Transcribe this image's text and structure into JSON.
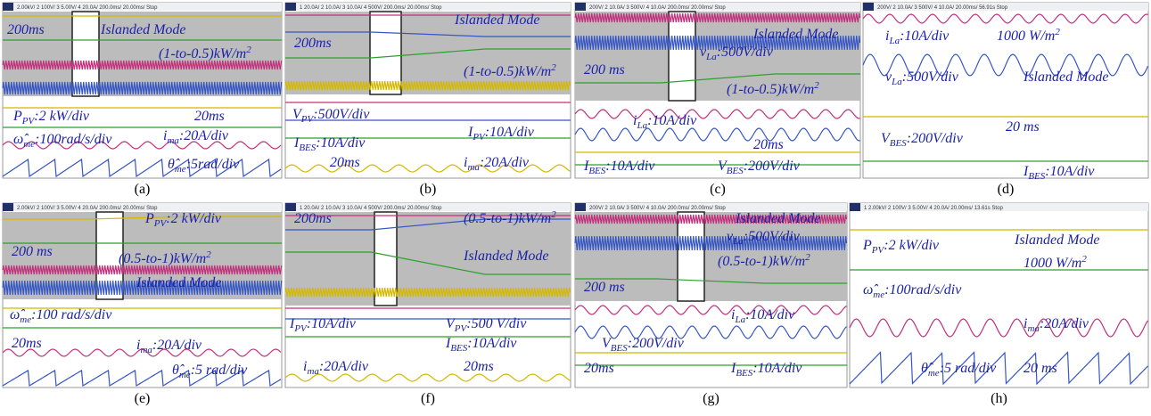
{
  "panels": [
    {
      "caption": "(a)",
      "header": "2.00kV/   2   100V/   3   5.00V/   4   20.0A/   200.0ms/  20.00ms/   Stop",
      "labels": [
        [
          "200ms"
        ],
        [
          "Islanded Mode"
        ],
        [
          "(1-to-0.5)kW/m",
          {
            "sup": "2"
          }
        ],
        [
          "P",
          {
            "sub": "PV"
          },
          ":2 kW/div"
        ],
        [
          "20ms"
        ],
        [
          "ω̂",
          {
            "sub": "me"
          },
          ":100rad/s/div"
        ],
        [
          "i",
          {
            "sub": "ma"
          },
          ":20A/div"
        ],
        [
          "θ̂",
          {
            "sub": "me"
          },
          ":5rad/div"
        ]
      ]
    },
    {
      "caption": "(b)",
      "header": "1   20.0A/   2   10.0A/   3   10.0A/   4   500V/   200.0ms/  20.00ms/   Stop",
      "labels": [
        [
          "Islanded Mode"
        ],
        [
          "200ms"
        ],
        [
          "(1-to-0.5)kW/m",
          {
            "sup": "2"
          }
        ],
        [
          "V",
          {
            "sub": "PV"
          },
          ":500V/div"
        ],
        [
          "I",
          {
            "sub": "BES"
          },
          ":10A/div"
        ],
        [
          "I",
          {
            "sub": "PV"
          },
          ":10A/div"
        ],
        [
          "20ms"
        ],
        [
          "i",
          {
            "sub": "ma"
          },
          ":20A/div"
        ]
      ]
    },
    {
      "caption": "(c)",
      "header": "200V/   2   10.0A/   3   500V/   4   10.0A/   200.0ms/  20.00ms/   Stop",
      "labels": [
        [
          "Islanded Mode"
        ],
        [
          "v",
          {
            "sub": "La"
          },
          ":500V/div"
        ],
        [
          "200 ms"
        ],
        [
          "(1-to-0.5)kW/m",
          {
            "sup": "2"
          }
        ],
        [
          "i",
          {
            "sub": "La"
          },
          ":10A/div"
        ],
        [
          "20ms"
        ],
        [
          "I",
          {
            "sub": "BES"
          },
          ":10A/div"
        ],
        [
          "V",
          {
            "sub": "BES"
          },
          ":200V/div"
        ]
      ]
    },
    {
      "caption": "(d)",
      "header": "200V/   2   10.0A/   3   500V/   4   10.0A/   20.00ms/   56.91s   Stop",
      "labels": [
        [
          "i",
          {
            "sub": "La"
          },
          ":10A/div"
        ],
        [
          "1000 W/m",
          {
            "sup": "2"
          }
        ],
        [
          "v",
          {
            "sub": "La"
          },
          ":500V/div"
        ],
        [
          "Islanded Mode"
        ],
        [
          "V",
          {
            "sub": "BES"
          },
          ":200V/div"
        ],
        [
          "20 ms"
        ],
        [
          "I",
          {
            "sub": "BES"
          },
          ":10A/div"
        ]
      ]
    },
    {
      "caption": "(e)",
      "header": "2.00kV/   2   100V/   3   5.00V/   4   20.0A/   200.0ms/  20.00ms/   Stop",
      "labels": [
        [
          "P",
          {
            "sub": "PV"
          },
          ":2 kW/div"
        ],
        [
          "200 ms"
        ],
        [
          "(0.5-to-1)kW/m",
          {
            "sup": "2"
          }
        ],
        [
          "Islanded Mode"
        ],
        [
          "ω̂",
          {
            "sub": "me"
          },
          ":100 rad/s/div"
        ],
        [
          "20ms"
        ],
        [
          "i",
          {
            "sub": "ma"
          },
          ":20A/div"
        ],
        [
          "θ̂",
          {
            "sub": "me"
          },
          ":5 rad/div"
        ]
      ]
    },
    {
      "caption": "(f)",
      "header": "1   20.0A/   2   10.0A/   3   10.0A/   4   500V/   200.0ms/  20.00ms/   Stop",
      "labels": [
        [
          "200ms"
        ],
        [
          "(0.5-to-1)kW/m",
          {
            "sup": "2"
          }
        ],
        [
          "Islanded Mode"
        ],
        [
          "I",
          {
            "sub": "PV"
          },
          ":10A/div"
        ],
        [
          "V",
          {
            "sub": "PV"
          },
          ":500 V/div"
        ],
        [
          "I",
          {
            "sub": "BES"
          },
          ":10A/div"
        ],
        [
          "i",
          {
            "sub": "ma"
          },
          ":20A/div"
        ],
        [
          "20ms"
        ]
      ]
    },
    {
      "caption": "(g)",
      "header": "200V/   2   10.0A/   3   500V/   4   10.0A/   200.0ms/  20.00ms/   Stop",
      "labels": [
        [
          "Islanded Mode"
        ],
        [
          "v",
          {
            "sub": "La"
          },
          ":500V/div"
        ],
        [
          "200 ms"
        ],
        [
          "(0.5-to-1)kW/m",
          {
            "sup": "2"
          }
        ],
        [
          "i",
          {
            "sub": "La"
          },
          ":10A/div"
        ],
        [
          "V",
          {
            "sub": "BES"
          },
          ":200V/div"
        ],
        [
          "20ms"
        ],
        [
          "I",
          {
            "sub": "BES"
          },
          ":10A/div"
        ]
      ]
    },
    {
      "caption": "(h)",
      "header": "1   2.00kV/   2   100V/   3   5.00V/   4   20.0A/   20.00ms/   13.61s   Stop",
      "labels": [
        [
          "P",
          {
            "sub": "PV"
          },
          ":2 kW/div"
        ],
        [
          "Islanded Mode"
        ],
        [
          "1000 W/m",
          {
            "sup": "2"
          }
        ],
        [
          "ω̂",
          {
            "sub": "me"
          },
          ":100rad/s/div"
        ],
        [
          "i",
          {
            "sub": "ma"
          },
          ":20A/div"
        ],
        [
          "θ̂",
          {
            "sub": "me"
          },
          ":5 rad/div"
        ],
        [
          "20 ms"
        ]
      ]
    }
  ]
}
